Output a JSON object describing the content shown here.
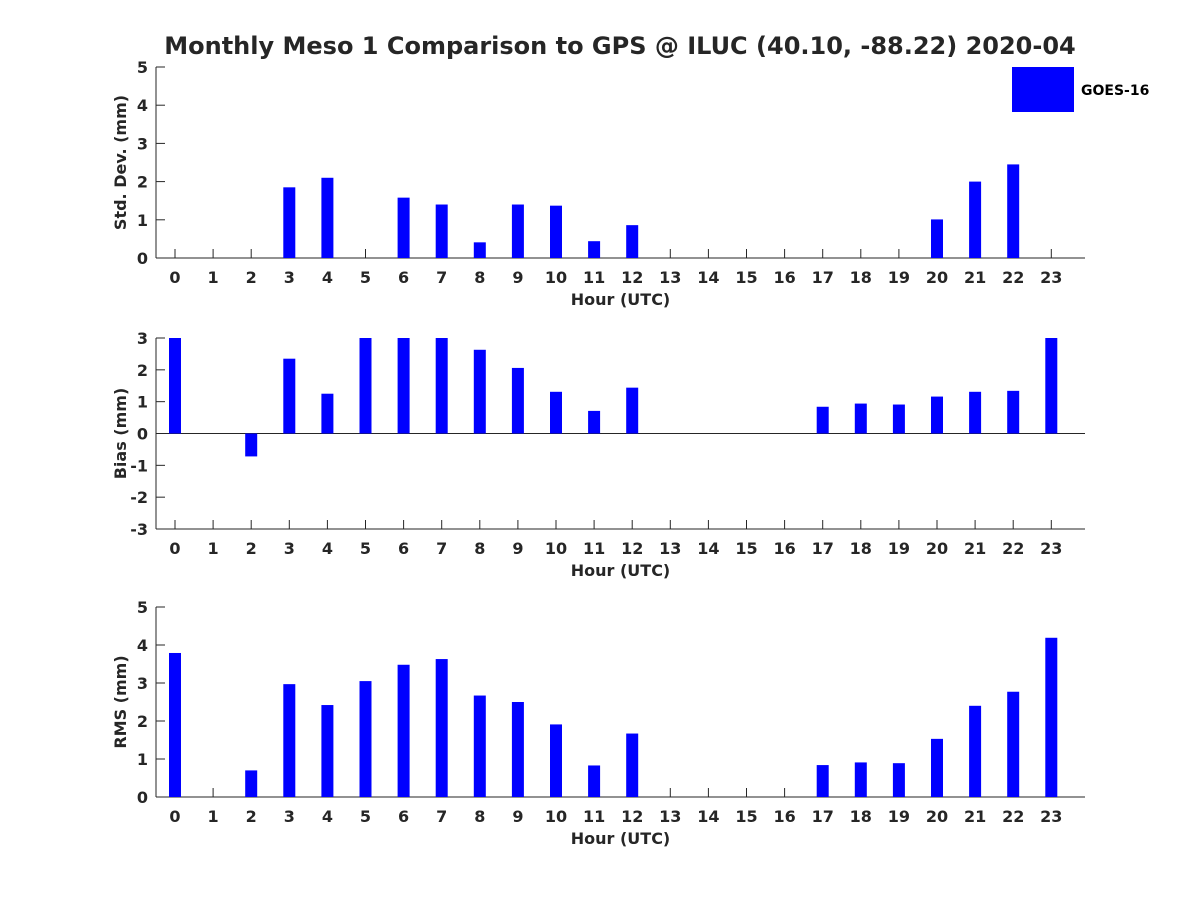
{
  "chart_data": {
    "title": "Monthly Meso 1 Comparison to GPS @ ILUC (40.10, -88.22) 2020-04",
    "legend": {
      "label": "GOES-16",
      "placement": "top-right"
    },
    "bar_color": "#0000ff",
    "axis_color": "#262626",
    "panels": [
      {
        "type": "bar",
        "ylabel": "Std. Dev. (mm)",
        "xlabel": "Hour (UTC)",
        "ylim": [
          0,
          5
        ],
        "yticks": [
          0,
          1,
          2,
          3,
          4,
          5
        ],
        "categories": [
          0,
          1,
          2,
          3,
          4,
          5,
          6,
          7,
          8,
          9,
          10,
          11,
          12,
          13,
          14,
          15,
          16,
          17,
          18,
          19,
          20,
          21,
          22,
          23
        ],
        "values": [
          null,
          null,
          null,
          1.85,
          2.1,
          null,
          1.58,
          1.4,
          0.41,
          1.4,
          1.37,
          0.44,
          0.86,
          null,
          null,
          null,
          null,
          null,
          null,
          null,
          1.01,
          2.0,
          2.45,
          null
        ]
      },
      {
        "type": "bar",
        "ylabel": "Bias (mm)",
        "xlabel": "Hour (UTC)",
        "ylim": [
          -3,
          3
        ],
        "yticks": [
          -3,
          -2,
          -1,
          0,
          1,
          2,
          3
        ],
        "categories": [
          0,
          1,
          2,
          3,
          4,
          5,
          6,
          7,
          8,
          9,
          10,
          11,
          12,
          13,
          14,
          15,
          16,
          17,
          18,
          19,
          20,
          21,
          22,
          23
        ],
        "values": [
          3.0,
          null,
          -0.72,
          2.35,
          1.25,
          3.0,
          3.0,
          3.0,
          2.63,
          2.06,
          1.31,
          0.71,
          1.44,
          null,
          null,
          null,
          null,
          0.84,
          0.94,
          0.91,
          1.16,
          1.31,
          1.34,
          3.0
        ]
      },
      {
        "type": "bar",
        "ylabel": "RMS (mm)",
        "xlabel": "Hour (UTC)",
        "ylim": [
          0,
          5
        ],
        "yticks": [
          0,
          1,
          2,
          3,
          4,
          5
        ],
        "categories": [
          0,
          1,
          2,
          3,
          4,
          5,
          6,
          7,
          8,
          9,
          10,
          11,
          12,
          13,
          14,
          15,
          16,
          17,
          18,
          19,
          20,
          21,
          22,
          23
        ],
        "values": [
          3.79,
          null,
          0.7,
          2.97,
          2.42,
          3.05,
          3.48,
          3.63,
          2.67,
          2.5,
          1.91,
          0.83,
          1.67,
          null,
          null,
          null,
          null,
          0.84,
          0.91,
          0.89,
          1.53,
          2.4,
          2.77,
          4.19
        ]
      }
    ]
  }
}
